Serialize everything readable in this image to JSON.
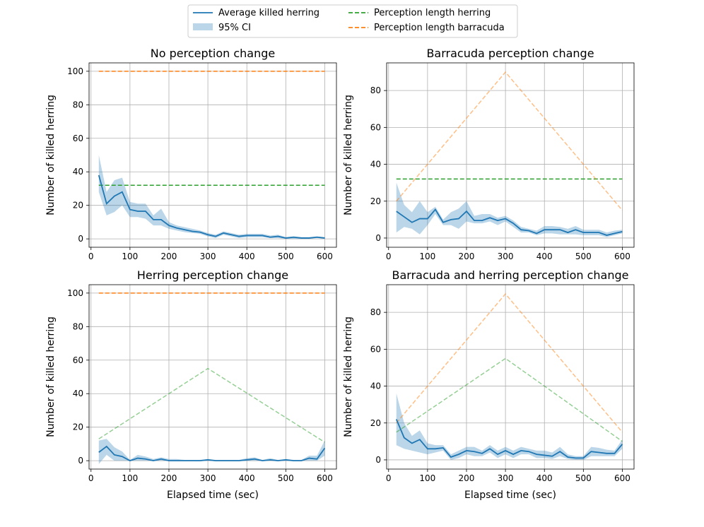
{
  "legend": {
    "entries": [
      {
        "label": "Average killed herring",
        "kind": "line",
        "color": "#1f77b4"
      },
      {
        "label": "95% CI",
        "kind": "patch",
        "color": "#1f77b4"
      },
      {
        "label": "Perception length herring",
        "kind": "dashed",
        "color": "#2ca02c"
      },
      {
        "label": "Perception length barracuda",
        "kind": "dashed",
        "color": "#ff7f0e"
      }
    ]
  },
  "colors": {
    "mean": "#1f77b4",
    "herring": "#2ca02c",
    "barracuda": "#ff7f0e",
    "grid": "#b0b0b0"
  },
  "chart_data": [
    {
      "type": "line",
      "title": "No perception change",
      "xlabel": "",
      "ylabel": "Number of killed herring",
      "xlim": [
        -5,
        630
      ],
      "ylim": [
        -5,
        105
      ],
      "xticks": [
        0,
        100,
        200,
        300,
        400,
        500,
        600
      ],
      "yticks": [
        0,
        20,
        40,
        60,
        80,
        100
      ],
      "grid": true,
      "x": [
        20,
        40,
        60,
        80,
        100,
        120,
        140,
        160,
        180,
        200,
        220,
        240,
        260,
        280,
        300,
        320,
        340,
        360,
        380,
        400,
        420,
        440,
        460,
        480,
        500,
        520,
        540,
        560,
        580,
        600
      ],
      "series": [
        {
          "name": "Average killed herring",
          "values": [
            38,
            21,
            25.5,
            28,
            17.5,
            16.5,
            16.5,
            11.5,
            11.5,
            8,
            6.5,
            5.5,
            4.5,
            4,
            2.5,
            1.5,
            3.5,
            2.5,
            1.5,
            2,
            2,
            2,
            1,
            1.5,
            0.5,
            1,
            0.5,
            0.5,
            1,
            0.5
          ]
        }
      ],
      "ci": {
        "name": "95% CI",
        "lower": [
          28,
          14,
          16,
          20,
          13,
          13,
          12,
          8,
          8,
          6,
          5,
          4,
          3.5,
          3,
          1.5,
          0.5,
          2.5,
          1.5,
          0.5,
          1,
          1,
          1,
          0.5,
          0.5,
          0,
          0,
          0,
          0,
          0.5,
          0
        ],
        "upper": [
          50,
          28,
          35,
          36.5,
          22,
          21,
          21,
          14,
          18,
          10,
          8,
          7,
          6,
          5,
          3.5,
          2.5,
          4.5,
          3.5,
          2.5,
          3,
          3,
          3,
          2,
          2.5,
          1,
          1.5,
          1,
          1,
          1.5,
          1
        ]
      },
      "reference_lines": [
        {
          "name": "Perception length herring",
          "x": [
            20,
            600
          ],
          "values": [
            32,
            32
          ],
          "faded": false
        },
        {
          "name": "Perception length barracuda",
          "x": [
            20,
            600
          ],
          "values": [
            100,
            100
          ],
          "faded": false
        }
      ]
    },
    {
      "type": "line",
      "title": "Barracuda perception change",
      "xlabel": "",
      "ylabel": "Number of killed herring",
      "xlim": [
        -5,
        630
      ],
      "ylim": [
        -5,
        95
      ],
      "xticks": [
        0,
        100,
        200,
        300,
        400,
        500,
        600
      ],
      "yticks": [
        0,
        20,
        40,
        60,
        80
      ],
      "grid": true,
      "x": [
        20,
        40,
        60,
        80,
        100,
        120,
        140,
        160,
        180,
        200,
        220,
        240,
        260,
        280,
        300,
        320,
        340,
        360,
        380,
        400,
        420,
        440,
        460,
        480,
        500,
        520,
        540,
        560,
        580,
        600
      ],
      "series": [
        {
          "name": "Average killed herring",
          "values": [
            14.5,
            11.5,
            8.5,
            10.5,
            10.5,
            15.5,
            8.5,
            10,
            10.5,
            14.5,
            9.5,
            9.5,
            11,
            9.5,
            10.5,
            8,
            4.5,
            4,
            2.5,
            4.5,
            4.5,
            4.5,
            3,
            4.5,
            3,
            3,
            3,
            1.5,
            2.5,
            3.5
          ]
        }
      ],
      "ci": {
        "name": "95% CI",
        "lower": [
          3,
          6,
          5,
          2,
          7,
          13,
          7,
          7,
          5,
          9,
          8,
          8,
          9,
          7,
          9,
          6,
          3,
          3,
          1.5,
          2.5,
          2.5,
          2,
          2,
          2,
          1.5,
          1.5,
          1.5,
          0.5,
          1.5,
          2.5
        ],
        "upper": [
          30,
          18,
          14,
          20,
          14,
          17,
          10,
          14,
          16,
          20,
          12,
          13,
          13,
          11,
          12,
          9.5,
          6,
          5,
          4,
          6.5,
          6.5,
          6,
          5,
          6.5,
          4.5,
          4.5,
          4.5,
          3,
          4,
          4.5
        ]
      },
      "reference_lines": [
        {
          "name": "Perception length herring",
          "x": [
            20,
            600
          ],
          "values": [
            32,
            32
          ],
          "faded": false
        },
        {
          "name": "Perception length barracuda",
          "x": [
            20,
            300,
            600
          ],
          "values": [
            20,
            90,
            15
          ],
          "faded": true
        }
      ]
    },
    {
      "type": "line",
      "title": "Herring perception change",
      "xlabel": "Elapsed time (sec)",
      "ylabel": "Number of killed herring",
      "xlim": [
        -5,
        630
      ],
      "ylim": [
        -5,
        105
      ],
      "xticks": [
        0,
        100,
        200,
        300,
        400,
        500,
        600
      ],
      "yticks": [
        0,
        20,
        40,
        60,
        80,
        100
      ],
      "grid": true,
      "x": [
        20,
        40,
        60,
        80,
        100,
        120,
        140,
        160,
        180,
        200,
        220,
        240,
        260,
        280,
        300,
        320,
        340,
        360,
        380,
        400,
        420,
        440,
        460,
        480,
        500,
        520,
        540,
        560,
        580,
        600
      ],
      "series": [
        {
          "name": "Average killed herring",
          "values": [
            5,
            8.5,
            3.5,
            2.5,
            0,
            1.5,
            1,
            0,
            1,
            0,
            0,
            0,
            0,
            0,
            0.5,
            0,
            0,
            0,
            0,
            0.5,
            1,
            0,
            0.5,
            0,
            0.5,
            0,
            0,
            1.5,
            1,
            7.5
          ]
        }
      ],
      "ci": {
        "name": "95% CI",
        "lower": [
          -2,
          3.5,
          0,
          0,
          0,
          0,
          0,
          0,
          0,
          0,
          0,
          0,
          0,
          0,
          0,
          0,
          0,
          0,
          0,
          0,
          0,
          0,
          0,
          0,
          0,
          0,
          0,
          0,
          0,
          3
        ],
        "upper": [
          12,
          13,
          8,
          5.5,
          0.5,
          3.5,
          2.5,
          1,
          2,
          1,
          1,
          0.5,
          0.5,
          0.5,
          1,
          0.5,
          0.5,
          0.5,
          0.5,
          1.5,
          2,
          0.5,
          1.5,
          0.5,
          1,
          0.5,
          0.5,
          3,
          3,
          12
        ]
      },
      "reference_lines": [
        {
          "name": "Perception length herring",
          "x": [
            20,
            300,
            600
          ],
          "values": [
            13,
            55,
            11
          ],
          "faded": true
        },
        {
          "name": "Perception length barracuda",
          "x": [
            20,
            600
          ],
          "values": [
            100,
            100
          ],
          "faded": false
        }
      ]
    },
    {
      "type": "line",
      "title": "Barracuda and herring perception change",
      "xlabel": "Elapsed time (sec)",
      "ylabel": "Number of killed herring",
      "xlim": [
        -5,
        630
      ],
      "ylim": [
        -5,
        95
      ],
      "xticks": [
        0,
        100,
        200,
        300,
        400,
        500,
        600
      ],
      "yticks": [
        0,
        20,
        40,
        60,
        80
      ],
      "grid": true,
      "x": [
        20,
        40,
        60,
        80,
        100,
        120,
        140,
        160,
        180,
        200,
        220,
        240,
        260,
        280,
        300,
        320,
        340,
        360,
        380,
        400,
        420,
        440,
        460,
        480,
        500,
        520,
        540,
        560,
        580,
        600
      ],
      "series": [
        {
          "name": "Average killed herring",
          "values": [
            22,
            12,
            9,
            11,
            6,
            6,
            6.5,
            1.5,
            3,
            5,
            4.5,
            3.5,
            6,
            3,
            5,
            3,
            5,
            4.5,
            3,
            2.5,
            2,
            4.5,
            1.5,
            1,
            1,
            4.5,
            4,
            3.5,
            3.5,
            8.5
          ]
        }
      ],
      "ci": {
        "name": "95% CI",
        "lower": [
          8,
          6,
          5,
          4,
          3,
          4,
          5,
          0,
          1,
          3,
          2,
          2,
          4,
          1,
          3,
          1,
          3,
          3,
          1,
          1,
          0.5,
          2,
          0.5,
          0,
          0,
          2,
          2,
          2,
          2,
          6
        ],
        "upper": [
          36,
          20,
          13,
          16,
          9,
          8,
          8,
          3,
          5,
          7,
          7,
          5,
          8,
          5,
          7,
          5,
          7,
          6,
          5,
          5,
          4,
          7,
          3,
          2,
          2,
          7,
          6.5,
          5.5,
          5,
          11
        ]
      },
      "reference_lines": [
        {
          "name": "Perception length herring",
          "x": [
            20,
            300,
            600
          ],
          "values": [
            15,
            55,
            10
          ],
          "faded": true
        },
        {
          "name": "Perception length barracuda",
          "x": [
            20,
            300,
            600
          ],
          "values": [
            20,
            90,
            15
          ],
          "faded": true
        }
      ]
    }
  ]
}
